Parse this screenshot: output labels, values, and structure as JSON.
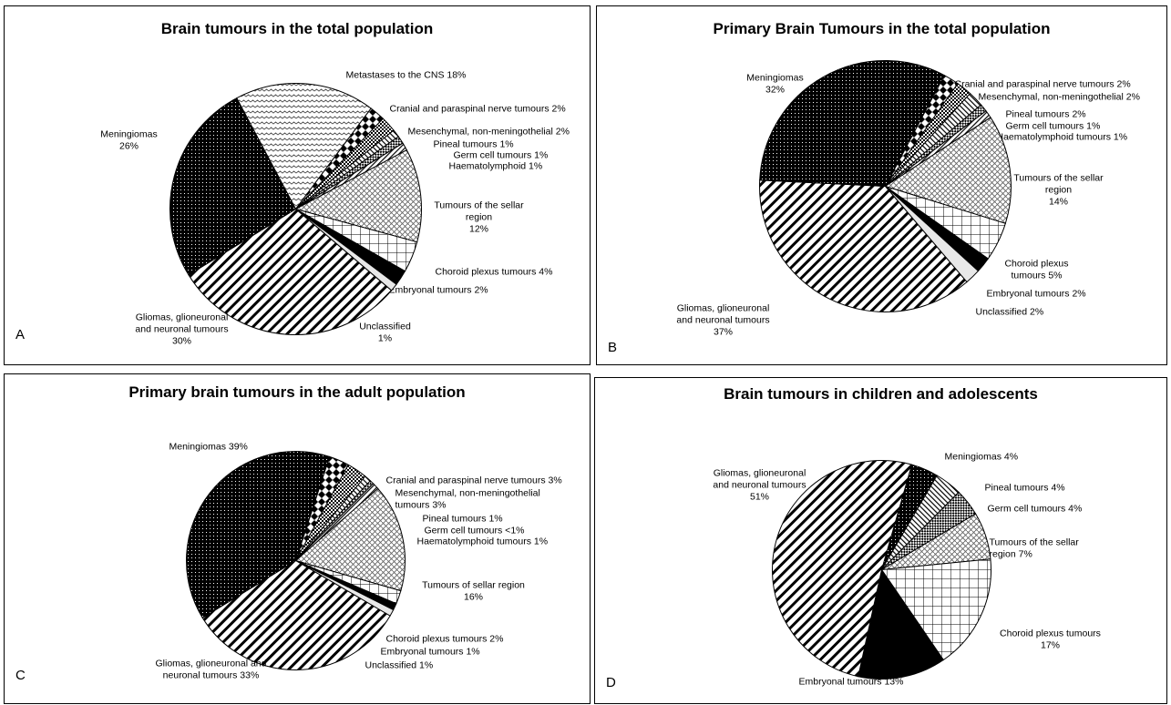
{
  "chart_data": [
    {
      "type": "pie",
      "panel_label": "A",
      "title": "Brain tumours in the total population",
      "slices": [
        {
          "name": "Metastases to the CNS",
          "value": 18,
          "fill": "waves",
          "label_lines": [
            "Metastases to the CNS 18%"
          ]
        },
        {
          "name": "Cranial and paraspinal nerve tumours",
          "value": 2,
          "fill": "diamonds",
          "label_lines": [
            "Cranial and paraspinal nerve tumours 2%"
          ]
        },
        {
          "name": "Mesenchymal, non-meningothelial",
          "value": 2,
          "fill": "dots-dense",
          "label_lines": [
            "Mesenchymal, non-meningothelial 2%"
          ]
        },
        {
          "name": "Pineal tumours",
          "value": 1,
          "fill": "fine-diag",
          "label_lines": [
            "Pineal tumours 1%"
          ]
        },
        {
          "name": "Germ cell tumours",
          "value": 1,
          "fill": "checker",
          "label_lines": [
            "Germ cell tumours 1%"
          ]
        },
        {
          "name": "Haematolymphoid",
          "value": 1,
          "fill": "fine-diag2",
          "label_lines": [
            "Haematolymphoid 1%"
          ]
        },
        {
          "name": "Tumours of the sellar region",
          "value": 12,
          "fill": "weave",
          "label_lines": [
            "Tumours of the sellar",
            "region",
            "12%"
          ]
        },
        {
          "name": "Choroid plexus tumours",
          "value": 4,
          "fill": "grid",
          "label_lines": [
            "Choroid plexus tumours 4%"
          ]
        },
        {
          "name": "Embryonal tumours",
          "value": 2,
          "fill": "solid",
          "label_lines": [
            "Embryonal tumours 2%"
          ]
        },
        {
          "name": "Unclassified",
          "value": 1,
          "fill": "light",
          "label_lines": [
            "Unclassified",
            "1%"
          ]
        },
        {
          "name": "Gliomas, glioneuronal and neuronal tumours",
          "value": 30,
          "fill": "diag",
          "label_lines": [
            "Gliomas, glioneuronal",
            "and neuronal tumours",
            "30%"
          ]
        },
        {
          "name": "Meningiomas",
          "value": 26,
          "fill": "dark-dots",
          "label_lines": [
            "Meningiomas",
            "26%"
          ]
        }
      ]
    },
    {
      "type": "pie",
      "panel_label": "B",
      "title": "Primary Brain Tumours in the total population",
      "slices": [
        {
          "name": "Cranial and paraspinal nerve tumours",
          "value": 2,
          "fill": "diamonds",
          "label_lines": [
            "Cranial and paraspinal nerve tumours 2%"
          ]
        },
        {
          "name": "Mesenchymal, non-meningothelial",
          "value": 2,
          "fill": "dots-dense",
          "label_lines": [
            "Mesenchymal, non-meningothelial 2%"
          ]
        },
        {
          "name": "Pineal tumours",
          "value": 2,
          "fill": "fine-diag",
          "label_lines": [
            "Pineal tumours 2%"
          ]
        },
        {
          "name": "Germ cell tumours",
          "value": 1,
          "fill": "checker",
          "label_lines": [
            "Germ cell tumours 1%"
          ]
        },
        {
          "name": "Haematolymphoid tumours",
          "value": 1,
          "fill": "fine-diag2",
          "label_lines": [
            "Haematolymphoid tumours 1%"
          ]
        },
        {
          "name": "Tumours of the sellar region",
          "value": 14,
          "fill": "weave",
          "label_lines": [
            "Tumours of the sellar",
            "region",
            "14%"
          ]
        },
        {
          "name": "Choroid plexus tumours",
          "value": 5,
          "fill": "grid",
          "label_lines": [
            "Choroid plexus",
            "tumours 5%"
          ]
        },
        {
          "name": "Embryonal tumours",
          "value": 2,
          "fill": "solid",
          "label_lines": [
            "Embryonal tumours 2%"
          ]
        },
        {
          "name": "Unclassified",
          "value": 2,
          "fill": "light",
          "label_lines": [
            "Unclassified 2%"
          ]
        },
        {
          "name": "Gliomas, glioneuronal and neuronal tumours",
          "value": 37,
          "fill": "diag",
          "label_lines": [
            "Gliomas, glioneuronal",
            "and neuronal tumours",
            "37%"
          ]
        },
        {
          "name": "Meningiomas",
          "value": 32,
          "fill": "dark-dots",
          "label_lines": [
            "Meningiomas",
            "32%"
          ]
        }
      ]
    },
    {
      "type": "pie",
      "panel_label": "C",
      "title": "Primary brain tumours in the adult population",
      "slices": [
        {
          "name": "Cranial and paraspinal nerve tumours",
          "value": 3,
          "fill": "diamonds",
          "label_lines": [
            "Cranial and paraspinal nerve tumours 3%"
          ]
        },
        {
          "name": "Mesenchymal, non-meningothelial tumours",
          "value": 3,
          "fill": "dots-dense",
          "label_lines": [
            "Mesenchymal, non-meningothelial",
            "tumours 3%"
          ]
        },
        {
          "name": "Pineal tumours",
          "value": 1,
          "fill": "fine-diag",
          "label_lines": [
            "Pineal tumours 1%"
          ]
        },
        {
          "name": "Germ cell tumours",
          "value": 0.6,
          "fill": "checker",
          "label_lines": [
            "Germ cell tumours <1%"
          ]
        },
        {
          "name": "Haematolymphoid tumours",
          "value": 1,
          "fill": "fine-diag2",
          "label_lines": [
            "Haematolymphoid tumours 1%"
          ]
        },
        {
          "name": "Tumours of sellar region",
          "value": 16,
          "fill": "weave",
          "label_lines": [
            "Tumours of sellar region",
            "16%"
          ]
        },
        {
          "name": "Choroid plexus tumours",
          "value": 2,
          "fill": "grid",
          "label_lines": [
            "Choroid plexus tumours 2%"
          ]
        },
        {
          "name": "Embryonal tumours",
          "value": 1,
          "fill": "solid",
          "label_lines": [
            "Embryonal tumours 1%"
          ]
        },
        {
          "name": "Unclassified",
          "value": 1,
          "fill": "light",
          "label_lines": [
            "Unclassified 1%"
          ]
        },
        {
          "name": "Gliomas, glioneuronal and neuronal tumours",
          "value": 33,
          "fill": "diag",
          "label_lines": [
            "Gliomas, glioneuronal and",
            "neuronal tumours 33%"
          ]
        },
        {
          "name": "Meningiomas",
          "value": 39,
          "fill": "dark-dots",
          "label_lines": [
            "Meningiomas 39%"
          ]
        }
      ]
    },
    {
      "type": "pie",
      "panel_label": "D",
      "title": "Brain tumours in children and adolescents",
      "slices": [
        {
          "name": "Meningiomas",
          "value": 4,
          "fill": "dark-dots",
          "label_lines": [
            "Meningiomas 4%"
          ]
        },
        {
          "name": "Pineal tumours",
          "value": 4,
          "fill": "fine-diag",
          "label_lines": [
            "Pineal tumours 4%"
          ]
        },
        {
          "name": "Germ cell tumours",
          "value": 4,
          "fill": "checker",
          "label_lines": [
            "Germ cell tumours 4%"
          ]
        },
        {
          "name": "Tumours of the sellar region",
          "value": 7,
          "fill": "weave",
          "label_lines": [
            "Tumours of the sellar",
            "region 7%"
          ]
        },
        {
          "name": "Choroid plexus tumours",
          "value": 17,
          "fill": "grid",
          "label_lines": [
            "Choroid plexus tumours",
            "17%"
          ]
        },
        {
          "name": "Embryonal tumours",
          "value": 13,
          "fill": "solid",
          "label_lines": [
            "Embryonal tumours 13%"
          ]
        },
        {
          "name": "Gliomas, glioneuronal and neuronal tumours",
          "value": 51,
          "fill": "diag",
          "label_lines": [
            "Gliomas, glioneuronal",
            "and neuronal tumours",
            "51%"
          ]
        }
      ]
    }
  ]
}
